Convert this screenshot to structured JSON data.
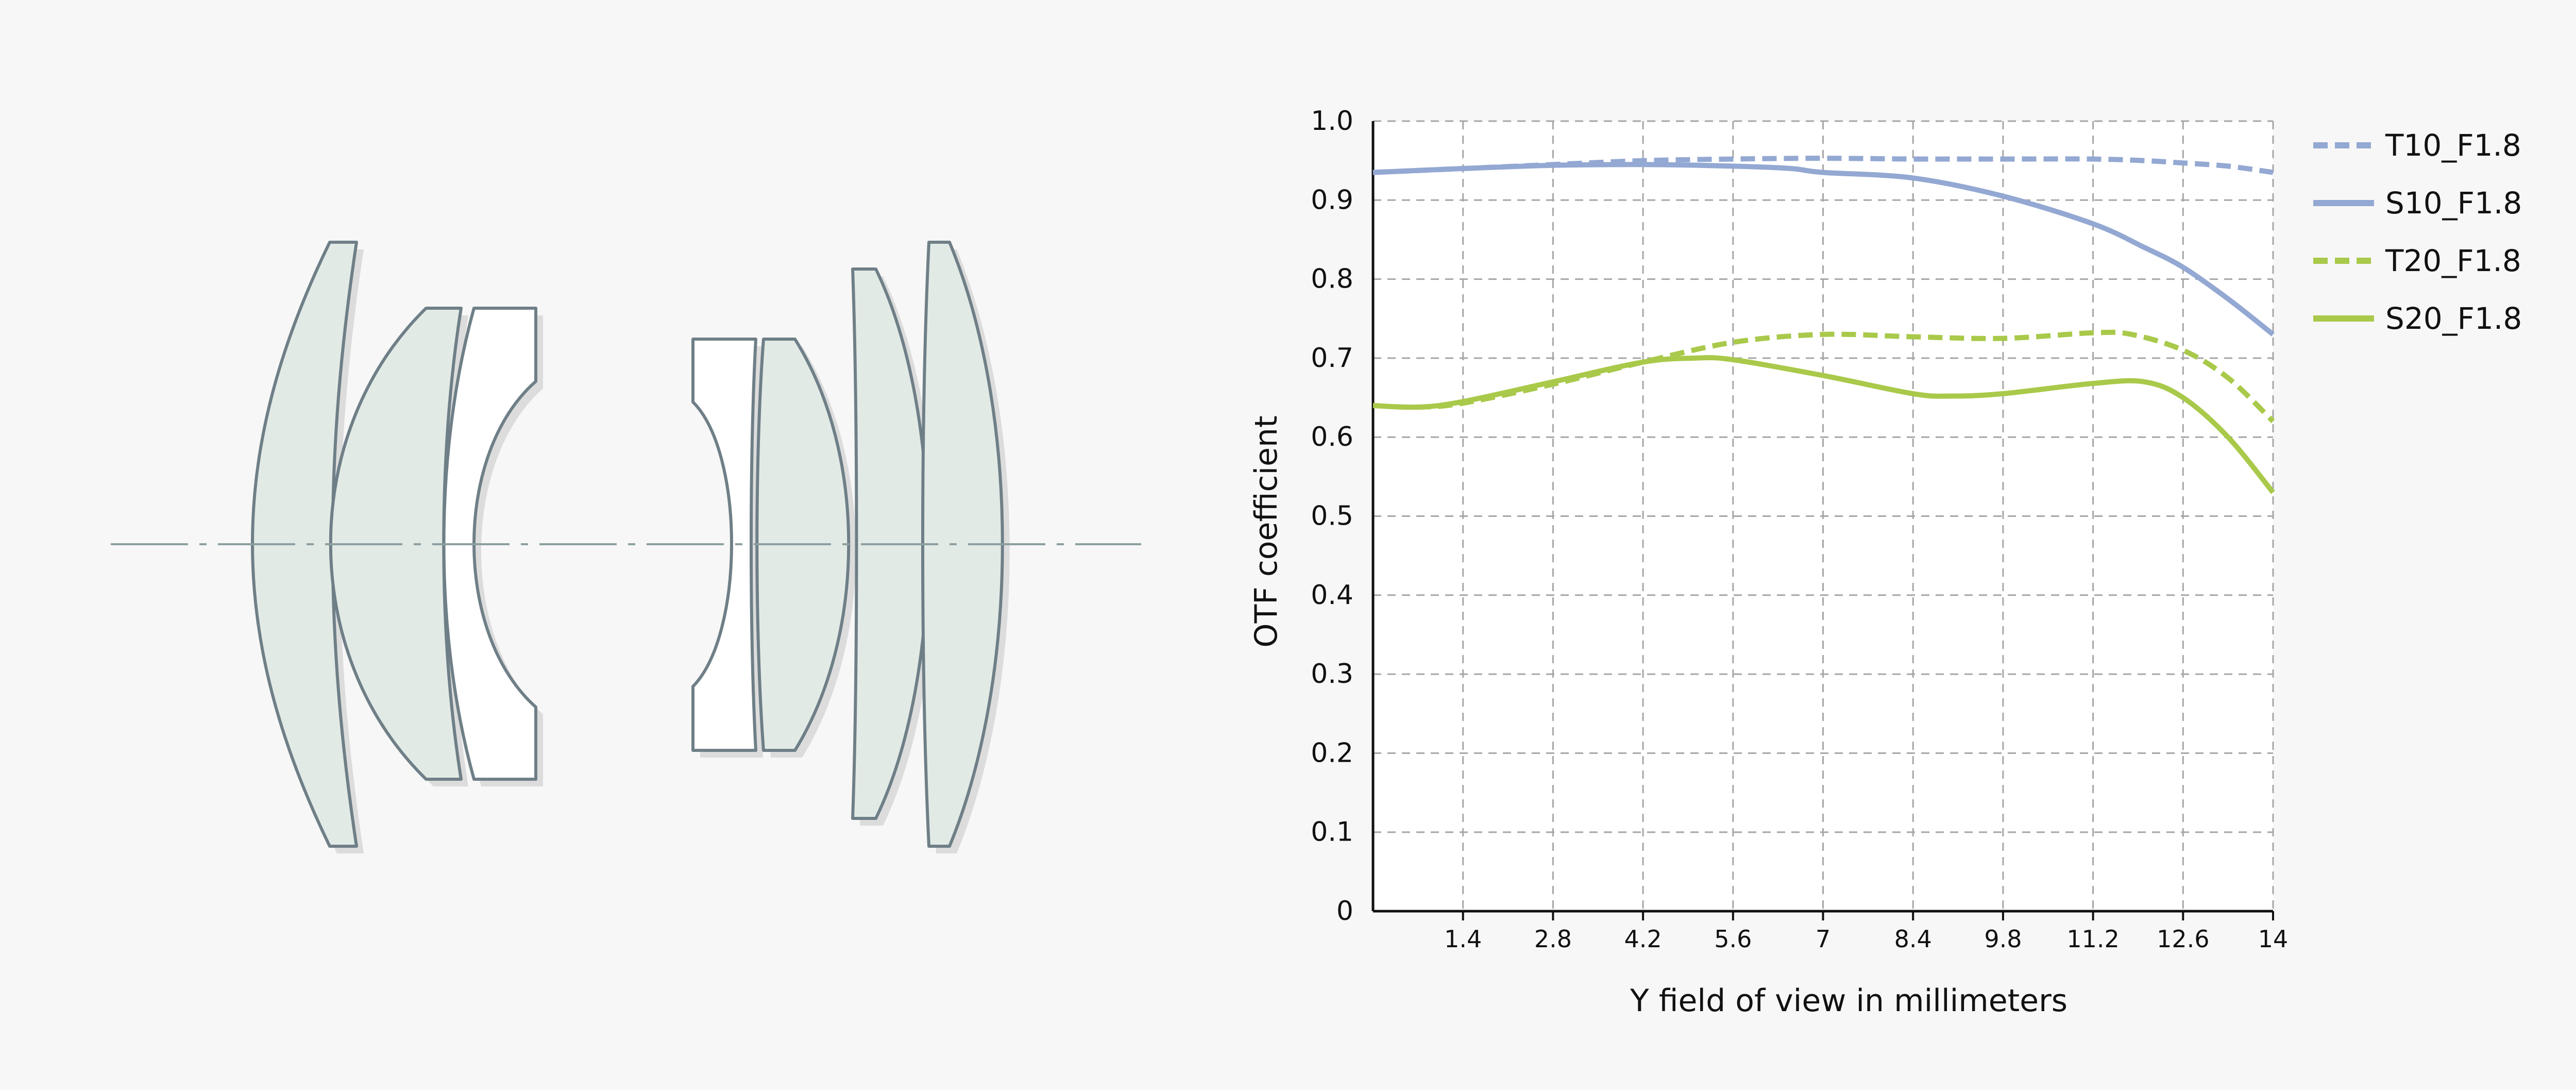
{
  "colors": {
    "background": "#f7f7f7",
    "plot_background": "#ffffff",
    "grid": "#a6a6a6",
    "axis": "#111111",
    "lens_fill": "#e2eae6",
    "lens_fill_alt": "#ffffff",
    "lens_stroke": "#6f7f87",
    "lens_shadow": "#dcdcdc",
    "optical_axis": "#8c9fa0"
  },
  "chart_data": {
    "type": "line",
    "xlabel": "Y field of view in millimeters",
    "ylabel": "OTF coefficient",
    "xlim": [
      0,
      14
    ],
    "ylim": [
      0,
      1.0
    ],
    "x_ticks": [
      "1.4",
      "2.8",
      "4.2",
      "5.6",
      "7",
      "8.4",
      "9.8",
      "11.2",
      "12.6",
      "14"
    ],
    "y_ticks": [
      "0",
      "0.1",
      "0.2",
      "0.3",
      "0.4",
      "0.5",
      "0.6",
      "0.7",
      "0.8",
      "0.9",
      "1.0"
    ],
    "grid": true,
    "legend_position": "top-right",
    "series": [
      {
        "name": "T10_F1.8",
        "color": "#93a8d2",
        "dash": "dashed",
        "x": [
          0,
          1.4,
          2.8,
          4.2,
          5.6,
          7,
          8.4,
          9.8,
          11.2,
          12,
          12.6,
          13.3,
          14
        ],
        "y": [
          0.935,
          0.94,
          0.945,
          0.95,
          0.952,
          0.953,
          0.952,
          0.952,
          0.952,
          0.95,
          0.947,
          0.943,
          0.935
        ]
      },
      {
        "name": "S10_F1.8",
        "color": "#93a8d2",
        "dash": "solid",
        "x": [
          0,
          1.4,
          2.8,
          4.2,
          5.6,
          6.5,
          7,
          8.4,
          9.8,
          11.2,
          12,
          12.6,
          13.3,
          14
        ],
        "y": [
          0.935,
          0.94,
          0.944,
          0.945,
          0.943,
          0.94,
          0.935,
          0.928,
          0.905,
          0.87,
          0.84,
          0.815,
          0.775,
          0.73
        ]
      },
      {
        "name": "T20_F1.8",
        "color": "#a9c94a",
        "dash": "dashed",
        "x": [
          0,
          0.7,
          1.4,
          2.8,
          4.2,
          5.6,
          7,
          8.4,
          9.8,
          11.2,
          11.8,
          12.6,
          13.3,
          14
        ],
        "y": [
          0.64,
          0.638,
          0.643,
          0.667,
          0.695,
          0.72,
          0.73,
          0.727,
          0.725,
          0.732,
          0.73,
          0.71,
          0.675,
          0.62
        ]
      },
      {
        "name": "S20_F1.8",
        "color": "#a9c94a",
        "dash": "solid",
        "x": [
          0,
          0.7,
          1.4,
          2.8,
          4.2,
          5,
          5.6,
          7,
          8.4,
          9,
          9.8,
          11.2,
          12,
          12.6,
          13.3,
          14
        ],
        "y": [
          0.64,
          0.638,
          0.645,
          0.67,
          0.695,
          0.7,
          0.698,
          0.678,
          0.655,
          0.652,
          0.655,
          0.668,
          0.67,
          0.65,
          0.6,
          0.53
        ]
      }
    ]
  }
}
